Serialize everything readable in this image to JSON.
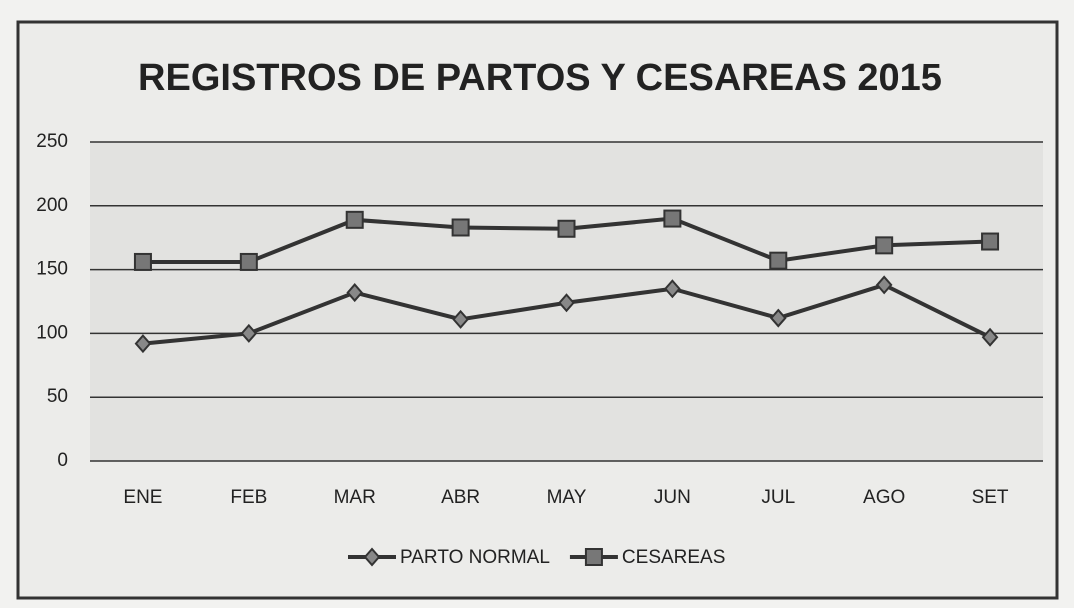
{
  "chart_data": {
    "type": "line",
    "title": "REGISTROS DE PARTOS Y CESAREAS 2015",
    "categories": [
      "ENE",
      "FEB",
      "MAR",
      "ABR",
      "MAY",
      "JUN",
      "JUL",
      "AGO",
      "SET"
    ],
    "series": [
      {
        "name": "PARTO NORMAL",
        "color": "#333333",
        "marker": "diamond",
        "values": [
          92,
          100,
          132,
          111,
          124,
          135,
          112,
          138,
          97
        ]
      },
      {
        "name": "CESAREAS",
        "color": "#333333",
        "marker": "square",
        "values": [
          156,
          156,
          189,
          183,
          182,
          190,
          157,
          169,
          172
        ]
      }
    ],
    "ylim": [
      0,
      250
    ],
    "yticks": [
      0,
      50,
      100,
      150,
      200,
      250
    ],
    "grid": true,
    "legend": "bottom"
  }
}
